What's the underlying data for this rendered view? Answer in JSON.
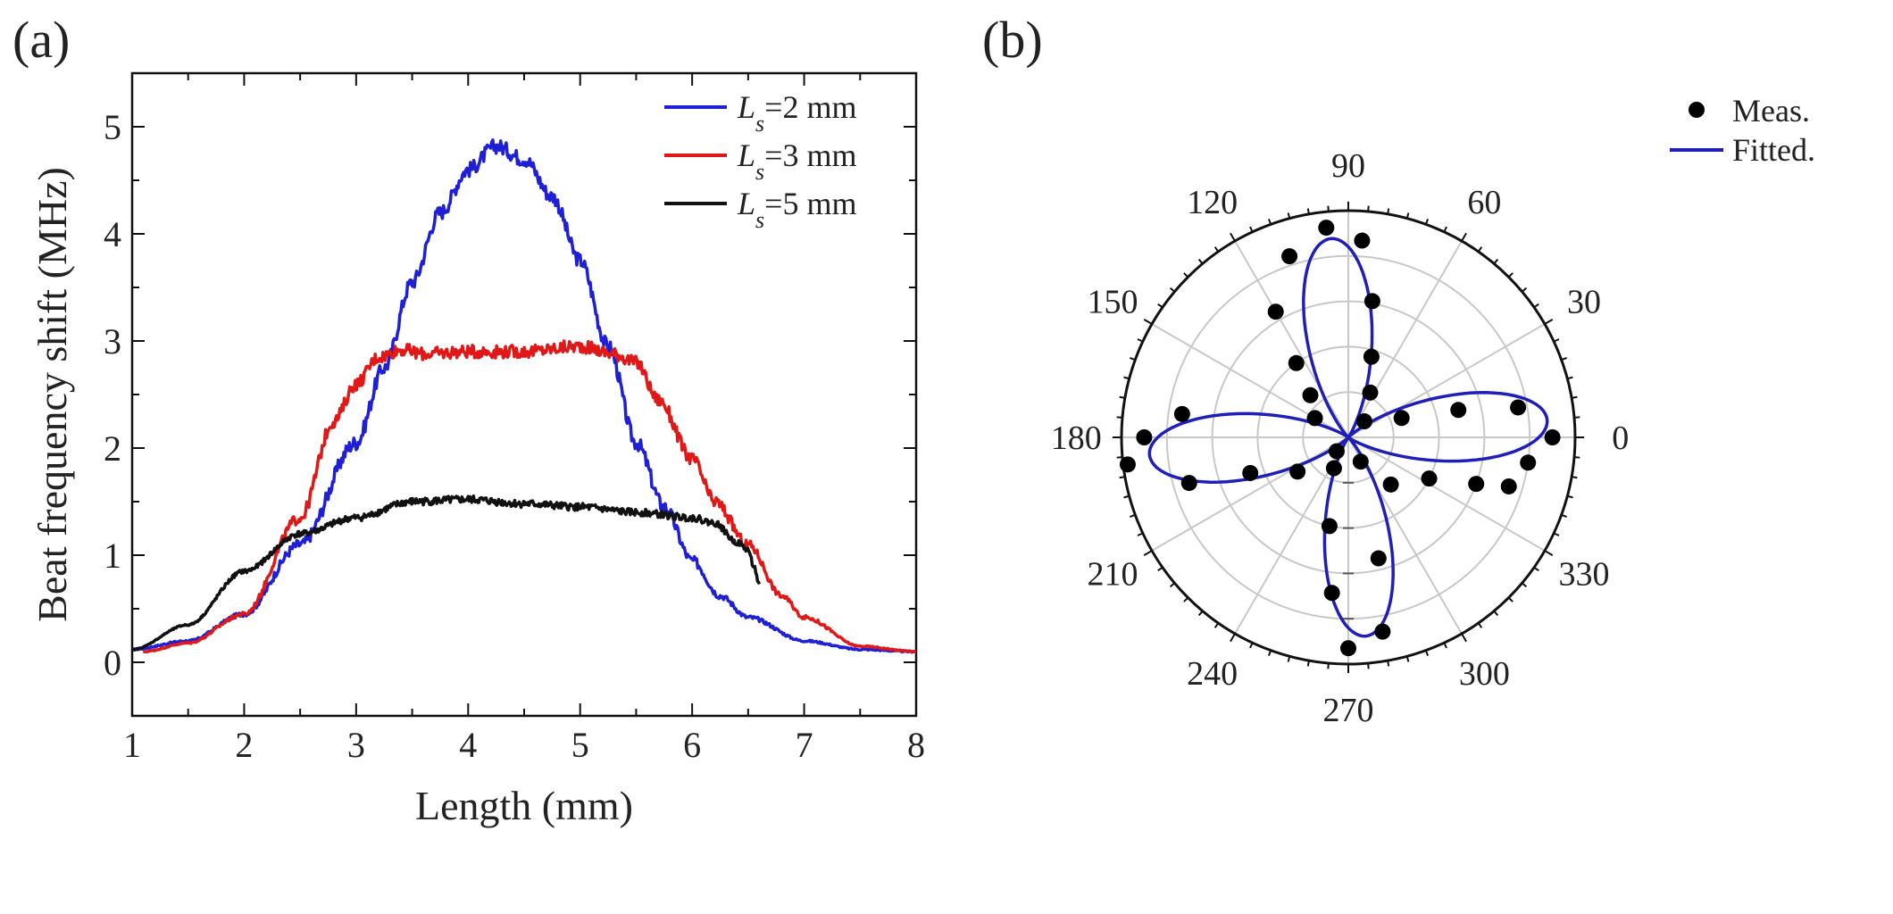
{
  "panels": {
    "a": {
      "label": "(a)"
    },
    "b": {
      "label": "(b)"
    }
  },
  "chart_data": [
    {
      "type": "line",
      "panel": "(a)",
      "title": "",
      "xlabel": "Length (mm)",
      "ylabel": "Beat frequency shift (MHz)",
      "xlim": [
        1,
        8
      ],
      "ylim": [
        -0.5,
        5.5
      ],
      "xticks": [
        1,
        2,
        3,
        4,
        5,
        6,
        7,
        8
      ],
      "yticks": [
        0,
        1,
        2,
        3,
        4,
        5
      ],
      "legend_position": "top-right",
      "series": [
        {
          "name_prefix": "L",
          "name_sub": "s",
          "name_suffix": "=2 mm",
          "color": "#1f1fd6",
          "x": [
            1.0,
            1.5,
            2.0,
            2.5,
            3.0,
            3.25,
            3.5,
            3.75,
            4.0,
            4.25,
            4.5,
            4.75,
            5.0,
            5.25,
            5.5,
            5.75,
            6.0,
            6.25,
            6.5,
            7.0,
            7.5,
            8.0
          ],
          "y": [
            0.12,
            0.2,
            0.45,
            1.1,
            2.05,
            2.75,
            3.55,
            4.2,
            4.6,
            4.82,
            4.7,
            4.35,
            3.75,
            2.95,
            2.05,
            1.45,
            0.95,
            0.62,
            0.42,
            0.2,
            0.12,
            0.1
          ]
        },
        {
          "name_prefix": "L",
          "name_sub": "s",
          "name_suffix": "=3 mm",
          "color": "#e01818",
          "x": [
            1.1,
            1.5,
            2.0,
            2.5,
            2.8,
            3.0,
            3.2,
            3.4,
            3.6,
            4.0,
            4.5,
            5.0,
            5.3,
            5.5,
            5.7,
            6.0,
            6.2,
            6.5,
            6.8,
            7.0,
            7.5,
            8.0
          ],
          "y": [
            0.1,
            0.18,
            0.45,
            1.35,
            2.25,
            2.6,
            2.85,
            2.92,
            2.88,
            2.9,
            2.9,
            2.95,
            2.88,
            2.8,
            2.45,
            1.9,
            1.5,
            1.1,
            0.62,
            0.42,
            0.15,
            0.1
          ]
        },
        {
          "name_prefix": "L",
          "name_sub": "s",
          "name_suffix": "=5 mm",
          "color": "#111111",
          "x": [
            1.0,
            1.5,
            2.0,
            2.5,
            3.0,
            3.5,
            4.0,
            4.5,
            5.0,
            5.5,
            6.0,
            6.2,
            6.4,
            6.5,
            6.55,
            6.6
          ],
          "y": [
            0.12,
            0.35,
            0.85,
            1.2,
            1.35,
            1.5,
            1.52,
            1.48,
            1.45,
            1.4,
            1.35,
            1.3,
            1.12,
            1.05,
            0.9,
            0.72
          ]
        }
      ]
    },
    {
      "type": "polar",
      "panel": "(b)",
      "angle_labels": [
        "0",
        "30",
        "60",
        "90",
        "120",
        "150",
        "180",
        "210",
        "240",
        "270",
        "300",
        "330"
      ],
      "angle_ticks_deg": [
        0,
        30,
        60,
        90,
        120,
        150,
        180,
        210,
        240,
        270,
        300,
        330
      ],
      "r_max": 1.0,
      "r_grid": [
        0.2,
        0.4,
        0.6,
        0.8,
        1.0
      ],
      "legend_position": "top-right",
      "series": [
        {
          "name": "Meas.",
          "kind": "scatter",
          "color": "#000000",
          "points": [
            {
              "theta": 0,
              "r": 0.9
            },
            {
              "theta": 10,
              "r": 0.76
            },
            {
              "theta": 14,
              "r": 0.5
            },
            {
              "theta": 20,
              "r": 0.25
            },
            {
              "theta": 45,
              "r": 0.1
            },
            {
              "theta": 64,
              "r": 0.22
            },
            {
              "theta": 74,
              "r": 0.37
            },
            {
              "theta": 80,
              "r": 0.61
            },
            {
              "theta": 86,
              "r": 0.87
            },
            {
              "theta": 96,
              "r": 0.93
            },
            {
              "theta": 108,
              "r": 0.84
            },
            {
              "theta": 120,
              "r": 0.64
            },
            {
              "theta": 125,
              "r": 0.4
            },
            {
              "theta": 132,
              "r": 0.25
            },
            {
              "theta": 150,
              "r": 0.17
            },
            {
              "theta": 172,
              "r": 0.74
            },
            {
              "theta": 180,
              "r": 0.9
            },
            {
              "theta": 187,
              "r": 0.98
            },
            {
              "theta": 196,
              "r": 0.73
            },
            {
              "theta": 200,
              "r": 0.46
            },
            {
              "theta": 214,
              "r": 0.27
            },
            {
              "theta": 230,
              "r": 0.08
            },
            {
              "theta": 245,
              "r": 0.15
            },
            {
              "theta": 258,
              "r": 0.4
            },
            {
              "theta": 264,
              "r": 0.69
            },
            {
              "theta": 270,
              "r": 0.93
            },
            {
              "theta": 280,
              "r": 0.87
            },
            {
              "theta": 284,
              "r": 0.55
            },
            {
              "theta": 297,
              "r": 0.12
            },
            {
              "theta": 312,
              "r": 0.28
            },
            {
              "theta": 333,
              "r": 0.4
            },
            {
              "theta": 340,
              "r": 0.6
            },
            {
              "theta": 343,
              "r": 0.74
            },
            {
              "theta": 352,
              "r": 0.8
            }
          ]
        },
        {
          "name": "Fitted.",
          "kind": "line",
          "color": "#1f1fb8",
          "model": "r = 0.88 * |cos(2*(theta - 5deg))|^3"
        }
      ]
    }
  ]
}
